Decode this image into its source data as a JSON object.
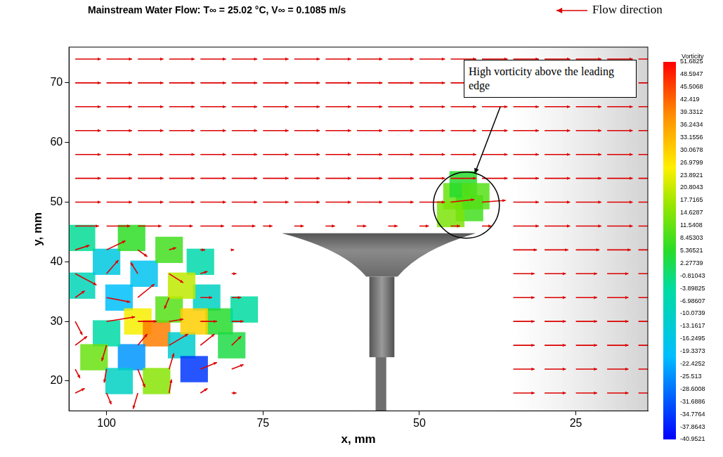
{
  "chart_data": {
    "type": "vector",
    "title": "Mainstream Water Flow: T∞ = 25.02 °C, V∞ = 0.1085 m/s",
    "x_label": "x, mm",
    "y_label": "y, mm",
    "xlim": [
      106,
      13.5
    ],
    "ylim": [
      15,
      76
    ],
    "xticks": [
      100,
      75,
      50,
      25
    ],
    "yticks": [
      20,
      30,
      40,
      50,
      60,
      70
    ],
    "grid": false,
    "color": "#dd0000",
    "annotations": [
      {
        "text": "High vorticity above the leading edge"
      },
      {
        "text": "Flow direction"
      }
    ],
    "vectors": {
      "x": [
        105,
        100,
        95,
        90,
        85,
        80,
        75,
        70,
        65,
        60,
        55,
        50,
        45,
        40,
        35,
        30,
        25,
        20,
        15
      ],
      "y": [
        74,
        70,
        66,
        62,
        58,
        54,
        50,
        46,
        42,
        38,
        34,
        30,
        26,
        22,
        18
      ],
      "u": [
        [
          -0.108,
          -0.108,
          -0.108,
          -0.108,
          -0.108,
          -0.108,
          -0.108,
          -0.108,
          -0.108,
          -0.108,
          -0.108,
          -0.108,
          -0.108,
          -0.108,
          -0.108,
          -0.108,
          -0.108,
          -0.108,
          -0.108
        ],
        [
          -0.108,
          -0.108,
          -0.108,
          -0.108,
          -0.108,
          -0.108,
          -0.108,
          -0.108,
          -0.108,
          -0.108,
          -0.108,
          -0.108,
          -0.108,
          -0.108,
          -0.108,
          -0.108,
          -0.108,
          -0.108,
          -0.108
        ],
        [
          -0.108,
          -0.108,
          -0.108,
          -0.108,
          -0.108,
          -0.108,
          -0.108,
          -0.108,
          -0.108,
          -0.108,
          -0.108,
          -0.108,
          -0.108,
          -0.108,
          -0.108,
          -0.108,
          -0.108,
          -0.108,
          -0.108
        ],
        [
          -0.108,
          -0.108,
          -0.108,
          -0.108,
          -0.108,
          -0.108,
          -0.108,
          -0.108,
          -0.108,
          -0.108,
          -0.108,
          -0.108,
          -0.108,
          -0.108,
          -0.108,
          -0.108,
          -0.108,
          -0.108,
          -0.108
        ],
        [
          -0.108,
          -0.108,
          -0.108,
          -0.108,
          -0.108,
          -0.108,
          -0.108,
          -0.108,
          -0.108,
          -0.108,
          -0.108,
          -0.108,
          -0.108,
          -0.108,
          -0.108,
          -0.108,
          -0.108,
          -0.108,
          -0.108
        ],
        [
          -0.108,
          -0.108,
          -0.108,
          -0.108,
          -0.108,
          -0.108,
          -0.108,
          -0.108,
          -0.108,
          -0.108,
          -0.108,
          -0.108,
          -0.108,
          -0.108,
          -0.108,
          -0.108,
          -0.108,
          -0.108,
          -0.108
        ],
        [
          -0.108,
          -0.108,
          -0.108,
          -0.108,
          -0.108,
          -0.108,
          -0.108,
          -0.108,
          -0.108,
          -0.108,
          -0.108,
          -0.108,
          -0.1,
          -0.1,
          -0.108,
          -0.108,
          -0.108,
          -0.108,
          -0.108
        ],
        [
          -0.1,
          -0.1,
          -0.1,
          -0.1,
          -0.1,
          -0.1,
          -0.04,
          -0.04,
          -0.04,
          -0.04,
          -0.04,
          -0.04,
          -0.04,
          -0.04,
          -0.108,
          -0.108,
          -0.108,
          -0.108,
          -0.108
        ],
        [
          -0.06,
          -0.08,
          -0.04,
          -0.03,
          -0.02,
          -0.01,
          null,
          null,
          null,
          null,
          null,
          null,
          null,
          null,
          -0.1,
          -0.1,
          -0.1,
          -0.1,
          -0.1
        ],
        [
          -0.09,
          -0.05,
          0.03,
          -0.06,
          -0.03,
          -0.02,
          null,
          null,
          null,
          null,
          null,
          null,
          null,
          null,
          -0.09,
          -0.09,
          -0.09,
          -0.09,
          -0.09
        ],
        [
          -0.04,
          -0.1,
          -0.07,
          0.02,
          -0.05,
          -0.04,
          null,
          null,
          null,
          null,
          null,
          null,
          null,
          null,
          -0.09,
          -0.09,
          -0.09,
          -0.09,
          -0.09
        ],
        [
          -0.03,
          -0.12,
          -0.08,
          -0.06,
          -0.07,
          -0.05,
          null,
          null,
          null,
          null,
          null,
          null,
          null,
          null,
          -0.09,
          -0.09,
          -0.09,
          -0.09,
          -0.09
        ],
        [
          -0.05,
          0.02,
          -0.04,
          -0.08,
          -0.06,
          -0.04,
          null,
          null,
          null,
          null,
          null,
          null,
          null,
          null,
          -0.09,
          -0.09,
          -0.09,
          -0.09,
          -0.09
        ],
        [
          -0.02,
          0.01,
          -0.03,
          -0.02,
          -0.07,
          -0.05,
          null,
          null,
          null,
          null,
          null,
          null,
          null,
          null,
          -0.09,
          -0.09,
          -0.09,
          -0.09,
          -0.09
        ],
        [
          -0.04,
          -0.02,
          0.02,
          -0.01,
          -0.03,
          -0.02,
          null,
          null,
          null,
          null,
          null,
          null,
          null,
          null,
          -0.09,
          -0.09,
          -0.09,
          -0.09,
          -0.09
        ]
      ],
      "v": [
        [
          0,
          0,
          0,
          0,
          0,
          0,
          0,
          0,
          0,
          0,
          0,
          0,
          0,
          0,
          0,
          0,
          0,
          0,
          0
        ],
        [
          0,
          0,
          0,
          0,
          0,
          0,
          0,
          0,
          0,
          0,
          0,
          0,
          0,
          0,
          0,
          0,
          0,
          0,
          0
        ],
        [
          0,
          0,
          0,
          0,
          0,
          0,
          0,
          0,
          0,
          0,
          0,
          0,
          0,
          0,
          0,
          0,
          0,
          0,
          0
        ],
        [
          0,
          0,
          0,
          0,
          0,
          0,
          0,
          0,
          0,
          0,
          0,
          0,
          0,
          0,
          0,
          0,
          0,
          0,
          0
        ],
        [
          0,
          0,
          0,
          0,
          0,
          0,
          0,
          0,
          0,
          0,
          0,
          0,
          0,
          0,
          0,
          0,
          0,
          0,
          0
        ],
        [
          0,
          0,
          0,
          0,
          0,
          0,
          0,
          0,
          0,
          0,
          0,
          0,
          0,
          0,
          0,
          0,
          0,
          0,
          0
        ],
        [
          0,
          0,
          0,
          0,
          0,
          0,
          0,
          0,
          0,
          0,
          0,
          0,
          0.012,
          0.008,
          0,
          0,
          0,
          0,
          0
        ],
        [
          0,
          0,
          0,
          0,
          0,
          0,
          0,
          0,
          0,
          0,
          0,
          0,
          0,
          0,
          0,
          0,
          0,
          0,
          0
        ],
        [
          0.02,
          0.04,
          -0.03,
          0.01,
          0,
          0,
          null,
          null,
          null,
          null,
          null,
          null,
          null,
          null,
          0,
          0,
          0,
          0,
          0
        ],
        [
          -0.05,
          0.06,
          0.05,
          -0.04,
          0.01,
          0,
          null,
          null,
          null,
          null,
          null,
          null,
          null,
          null,
          0,
          0,
          0,
          0,
          0
        ],
        [
          0.03,
          -0.02,
          0.06,
          -0.05,
          0,
          0,
          null,
          null,
          null,
          null,
          null,
          null,
          null,
          null,
          0,
          0,
          0,
          0,
          0
        ],
        [
          -0.06,
          0.02,
          0,
          0.01,
          0,
          0,
          null,
          null,
          null,
          null,
          null,
          null,
          null,
          null,
          0,
          0,
          0,
          0,
          0
        ],
        [
          0.04,
          -0.07,
          0.05,
          0.05,
          0.05,
          0.04,
          null,
          null,
          null,
          null,
          null,
          null,
          null,
          null,
          0,
          0,
          0,
          0,
          0
        ],
        [
          -0.04,
          -0.06,
          -0.08,
          0.07,
          0.03,
          0.02,
          null,
          null,
          null,
          null,
          null,
          null,
          null,
          null,
          0,
          0,
          0,
          0,
          0
        ],
        [
          0.02,
          -0.05,
          -0.07,
          0.06,
          0.02,
          0,
          null,
          null,
          null,
          null,
          null,
          null,
          null,
          null,
          0,
          0,
          0,
          0,
          0
        ]
      ]
    },
    "vorticity": {
      "points": [
        {
          "x": 104,
          "y": 36,
          "value": -8
        },
        {
          "x": 100,
          "y": 40,
          "value": -15
        },
        {
          "x": 98,
          "y": 34,
          "value": -20
        },
        {
          "x": 95,
          "y": 30,
          "value": 25
        },
        {
          "x": 92,
          "y": 28,
          "value": 40
        },
        {
          "x": 90,
          "y": 32,
          "value": 10
        },
        {
          "x": 88,
          "y": 26,
          "value": -12
        },
        {
          "x": 86,
          "y": 22,
          "value": -35
        },
        {
          "x": 84,
          "y": 34,
          "value": -10
        },
        {
          "x": 82,
          "y": 30,
          "value": 5
        },
        {
          "x": 96,
          "y": 24,
          "value": -25
        },
        {
          "x": 100,
          "y": 28,
          "value": -5
        },
        {
          "x": 94,
          "y": 38,
          "value": -18
        },
        {
          "x": 90,
          "y": 42,
          "value": 8
        },
        {
          "x": 102,
          "y": 24,
          "value": 12
        },
        {
          "x": 85,
          "y": 40,
          "value": -6
        },
        {
          "x": 92,
          "y": 20,
          "value": 15
        },
        {
          "x": 98,
          "y": 20,
          "value": -10
        },
        {
          "x": 80,
          "y": 26,
          "value": 3
        },
        {
          "x": 88,
          "y": 36,
          "value": 20
        },
        {
          "x": 78,
          "y": 32,
          "value": -4
        },
        {
          "x": 96,
          "y": 44,
          "value": 6
        },
        {
          "x": 104,
          "y": 44,
          "value": -3
        },
        {
          "x": 86,
          "y": 30,
          "value": 30
        },
        {
          "x": 44,
          "y": 51,
          "value": 12
        },
        {
          "x": 42,
          "y": 49,
          "value": 8
        },
        {
          "x": 45,
          "y": 48,
          "value": 14
        },
        {
          "x": 43,
          "y": 53,
          "value": 5
        },
        {
          "x": 41,
          "y": 51,
          "value": 10
        }
      ],
      "colorbar": {
        "label": "Vorticity",
        "range": [
          -40.9521,
          51.6825
        ],
        "ticks": [
          51.6825,
          48.5947,
          45.5068,
          42.419,
          39.3312,
          36.2434,
          33.1556,
          30.0678,
          26.9799,
          23.8921,
          20.8043,
          17.7165,
          14.6287,
          11.5408,
          8.45303,
          5.36521,
          2.27739,
          -0.81043,
          -3.89825,
          -6.98607,
          -10.0739,
          -13.1617,
          -16.2495,
          -19.3373,
          -22.4252,
          -25.513,
          -28.6008,
          -31.6886,
          -34.7764,
          -37.8643,
          -40.9521
        ]
      }
    }
  }
}
